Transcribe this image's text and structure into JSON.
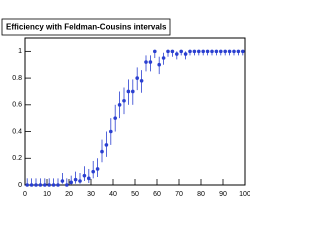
{
  "chart_data": {
    "type": "scatter",
    "title": "Efficiency with Feldman-Cousins intervals",
    "x": [
      1,
      3,
      5,
      7,
      9,
      11,
      13,
      15,
      17,
      19,
      21,
      23,
      25,
      27,
      29,
      31,
      33,
      35,
      37,
      39,
      41,
      43,
      45,
      47,
      49,
      51,
      53,
      55,
      57,
      59,
      61,
      63,
      65,
      67,
      69,
      71,
      73,
      75,
      77,
      79,
      81,
      83,
      85,
      87,
      89,
      91,
      93,
      95,
      97,
      99
    ],
    "values": [
      0,
      0,
      0,
      0,
      0,
      0,
      0,
      0,
      0.03,
      0,
      0.02,
      0.04,
      0.03,
      0.07,
      0.05,
      0.1,
      0.12,
      0.25,
      0.3,
      0.4,
      0.5,
      0.6,
      0.63,
      0.7,
      0.7,
      0.8,
      0.78,
      0.92,
      0.92,
      1,
      0.9,
      0.95,
      1,
      1,
      0.98,
      1,
      0.98,
      1,
      1,
      1,
      1,
      1,
      1,
      1,
      1,
      1,
      1,
      1,
      1,
      1
    ],
    "errors_low": [
      0,
      0,
      0,
      0,
      0,
      0,
      0,
      0,
      0.02,
      0,
      0.015,
      0.03,
      0.02,
      0.04,
      0.035,
      0.05,
      0.06,
      0.08,
      0.09,
      0.1,
      0.1,
      0.1,
      0.1,
      0.1,
      0.1,
      0.09,
      0.09,
      0.07,
      0.07,
      0.05,
      0.07,
      0.05,
      0.04,
      0.04,
      0.04,
      0.03,
      0.04,
      0.03,
      0.03,
      0.03,
      0.03,
      0.03,
      0.03,
      0.03,
      0.03,
      0.03,
      0.03,
      0.03,
      0.03,
      0.03
    ],
    "errors_high": [
      0.05,
      0.05,
      0.05,
      0.05,
      0.05,
      0.05,
      0.05,
      0.05,
      0.06,
      0.05,
      0.05,
      0.06,
      0.06,
      0.07,
      0.07,
      0.08,
      0.08,
      0.09,
      0.1,
      0.1,
      0.1,
      0.1,
      0.1,
      0.09,
      0.09,
      0.08,
      0.08,
      0.05,
      0.05,
      0,
      0.06,
      0.04,
      0,
      0,
      0.02,
      0,
      0.02,
      0,
      0,
      0,
      0,
      0,
      0,
      0,
      0,
      0,
      0,
      0,
      0,
      0
    ],
    "color": "#2a3fd0",
    "xlim": [
      0,
      100
    ],
    "xticks": [
      0,
      10,
      20,
      30,
      40,
      50,
      60,
      70,
      80,
      90,
      100
    ],
    "ylim": [
      0,
      1.1
    ],
    "yticks": [
      0,
      0.2,
      0.4,
      0.6,
      0.8,
      1
    ]
  }
}
